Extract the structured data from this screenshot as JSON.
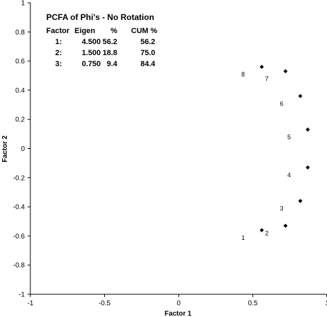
{
  "chart_data": {
    "type": "scatter",
    "title": "",
    "xlabel": "Factor 1",
    "ylabel": "Factor 2",
    "xlim": [
      -1,
      1
    ],
    "ylim": [
      -1,
      1
    ],
    "xticks": [
      "-1",
      "-0.5",
      "0",
      "0.5",
      "1"
    ],
    "yticks": [
      "-1",
      "-0.8",
      "-0.6",
      "-0.4",
      "-0.2",
      "0",
      "0.2",
      "0.4",
      "0.6",
      "0.8",
      "1"
    ],
    "grid": false,
    "marker_color": "#000000",
    "points": [
      {
        "label": "1",
        "x": 0.56,
        "y": -0.56
      },
      {
        "label": "2",
        "x": 0.72,
        "y": -0.53
      },
      {
        "label": "3",
        "x": 0.82,
        "y": -0.36
      },
      {
        "label": "4",
        "x": 0.87,
        "y": -0.13
      },
      {
        "label": "5",
        "x": 0.87,
        "y": 0.13
      },
      {
        "label": "6",
        "x": 0.82,
        "y": 0.36
      },
      {
        "label": "7",
        "x": 0.72,
        "y": 0.53
      },
      {
        "label": "8",
        "x": 0.56,
        "y": 0.56
      }
    ],
    "annotation": {
      "title": "PCFA of Phi's - No Rotation",
      "headers": [
        "Factor",
        "Eigen",
        "%",
        "CUM %"
      ],
      "rows": [
        [
          "1:",
          "4.500",
          "56.2",
          "56.2"
        ],
        [
          "2:",
          "1.500",
          "18.8",
          "75.0"
        ],
        [
          "3:",
          "0.750",
          "9.4",
          "84.4"
        ]
      ]
    }
  }
}
